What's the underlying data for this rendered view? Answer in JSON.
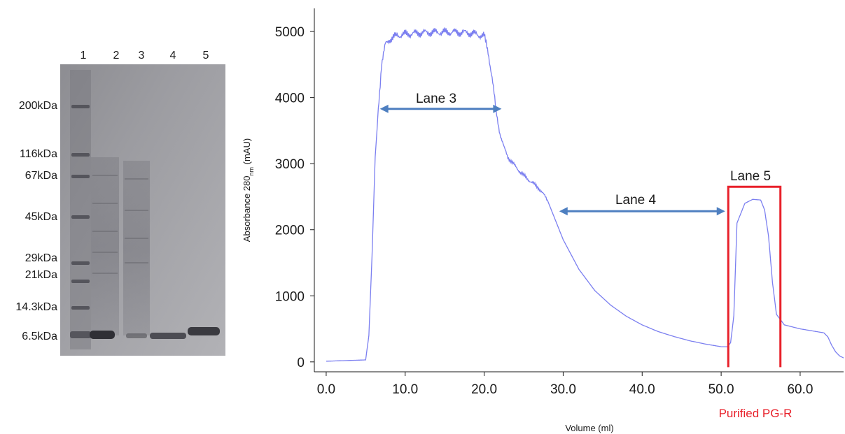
{
  "gel": {
    "lane_numbers": [
      "1",
      "2",
      "3",
      "4",
      "5"
    ],
    "markers": [
      "200kDa",
      "116kDa",
      "67kDa",
      "45kDa",
      "29kDa",
      "21kDa",
      "14.3kDa",
      "6.5kDa"
    ]
  },
  "chart_data": {
    "type": "line",
    "xlabel": "Volume (ml)",
    "ylabel": "Absorbance 280nm (mAU)",
    "ylabel_main": "Absorbance 280",
    "ylabel_sub": "nm",
    "ylabel_unit": " (mAU)",
    "xlim": [
      -1.5,
      65.5
    ],
    "ylim": [
      -150,
      5350
    ],
    "x_ticks": [
      0,
      10,
      20,
      30,
      40,
      50,
      60
    ],
    "x_tick_labels": [
      "0.0",
      "10.0",
      "20.0",
      "30.0",
      "40.0",
      "50.0",
      "60.0"
    ],
    "y_ticks": [
      0,
      1000,
      2000,
      3000,
      4000,
      5000
    ],
    "y_tick_labels": [
      "0",
      "1000",
      "2000",
      "3000",
      "4000",
      "5000"
    ],
    "grid": false,
    "line_color": "#7b7ff0",
    "series": [
      {
        "x": [
          0,
          5,
          5.4,
          5.8,
          6.2,
          6.6,
          7,
          7.5,
          8,
          9,
          10,
          12,
          14,
          16,
          18,
          19,
          20,
          20.5,
          21,
          21.5,
          22,
          22.5,
          23,
          24,
          25,
          26,
          27,
          28,
          29,
          30,
          32,
          34,
          36,
          38,
          40,
          42,
          44,
          46,
          48,
          50,
          50.8,
          51.2,
          51.6,
          52,
          53,
          54,
          55,
          55.5,
          56,
          56.5,
          57,
          58,
          60,
          62,
          63,
          63.5,
          64,
          64.5,
          65,
          65.5
        ],
        "y": [
          10,
          30,
          400,
          1600,
          3100,
          3800,
          4500,
          4800,
          4880,
          4940,
          4960,
          4980,
          4990,
          4990,
          4980,
          4960,
          4930,
          4700,
          4300,
          3800,
          3450,
          3250,
          3100,
          2950,
          2820,
          2720,
          2620,
          2450,
          2150,
          1850,
          1400,
          1080,
          860,
          690,
          560,
          460,
          385,
          320,
          270,
          230,
          230,
          290,
          700,
          2100,
          2400,
          2460,
          2450,
          2300,
          1900,
          1200,
          720,
          560,
          500,
          460,
          440,
          380,
          250,
          150,
          90,
          60
        ]
      }
    ],
    "annotations": [
      {
        "label": "Lane 3",
        "x_start": 6.8,
        "x_end": 22.2,
        "y": 3830,
        "color": "#4e7fc0"
      },
      {
        "label": "Lane 4",
        "x_start": 29.5,
        "x_end": 50.5,
        "y": 2280,
        "color": "#4e7fc0"
      },
      {
        "label": "Lane 5",
        "x_start": 50.9,
        "x_end": 57.5,
        "y_top": 2650,
        "y_bottom": -80,
        "color": "#e8202a"
      }
    ],
    "callout": "Purified PG-R"
  }
}
